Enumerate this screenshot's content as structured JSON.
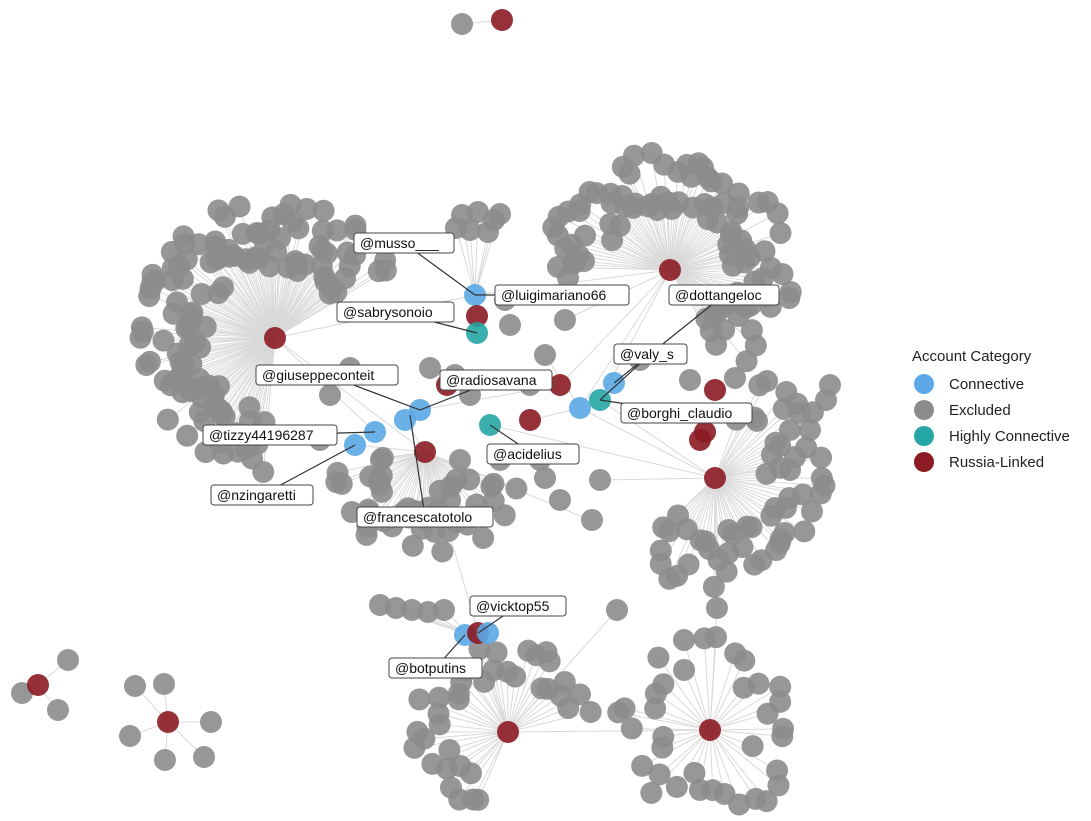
{
  "legend": {
    "title": "Account Category",
    "items": [
      {
        "label": "Connective",
        "color": "#5aa8e6"
      },
      {
        "label": "Excluded",
        "color": "#8c8c8c"
      },
      {
        "label": "Highly Connective",
        "color": "#26a5a5"
      },
      {
        "label": "Russia-Linked",
        "color": "#8b1a23"
      }
    ]
  },
  "labels": [
    "@musso___",
    "@luigimariano66",
    "@dottangeloc",
    "@sabrysonoio",
    "@valy_s",
    "@giuseppeconteit",
    "@radiosavana",
    "@borghi_claudio",
    "@tizzy44196287",
    "@acidelius",
    "@nzingaretti",
    "@francescatotolo",
    "@vicktop55",
    "@botputins"
  ]
}
